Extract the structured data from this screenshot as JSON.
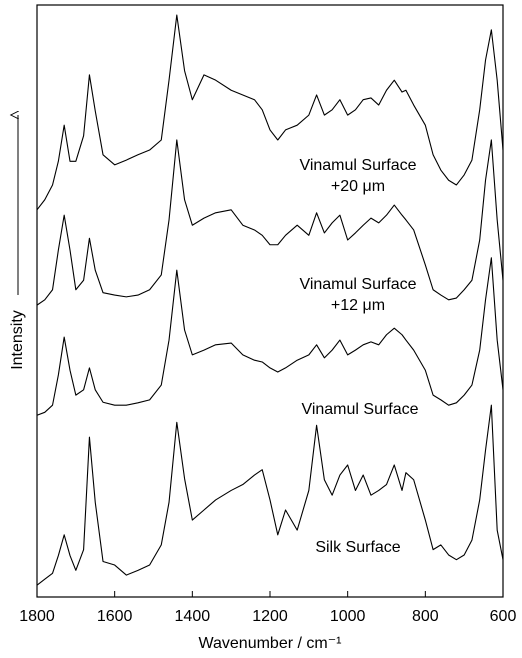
{
  "chart_data": {
    "type": "line",
    "x_label": "Wavenumber / cm⁻¹",
    "y_label": "Intensity",
    "x": [
      1800,
      1780,
      1760,
      1745,
      1730,
      1715,
      1700,
      1680,
      1665,
      1650,
      1630,
      1600,
      1570,
      1540,
      1510,
      1480,
      1460,
      1440,
      1420,
      1400,
      1370,
      1340,
      1300,
      1270,
      1240,
      1220,
      1200,
      1180,
      1160,
      1130,
      1100,
      1080,
      1060,
      1040,
      1020,
      1000,
      980,
      960,
      940,
      920,
      900,
      880,
      860,
      850,
      830,
      800,
      780,
      760,
      740,
      720,
      700,
      680,
      660,
      645,
      630,
      615,
      600
    ],
    "xlim": [
      1800,
      600
    ],
    "xticks": [
      1800,
      1600,
      1400,
      1200,
      1000,
      800,
      600
    ],
    "ylim": [
      0,
      100
    ],
    "series": [
      {
        "labels": [
          "Silk Surface"
        ],
        "color": "#000000",
        "values": [
          2,
          3,
          4,
          7,
          10.5,
          7,
          4.5,
          8,
          27,
          16,
          6,
          5.4,
          3.7,
          4.5,
          5.4,
          8.8,
          16,
          29.5,
          20,
          13,
          14.7,
          16.4,
          18,
          19,
          20.6,
          21.5,
          16.4,
          10.5,
          14.7,
          11.3,
          18,
          29,
          19.8,
          17.2,
          20.6,
          22.3,
          18,
          20.6,
          17.2,
          18,
          19,
          22.3,
          18,
          21,
          19.8,
          13,
          8,
          8.8,
          7.1,
          6.3,
          7.1,
          9.6,
          16.4,
          24.8,
          32.4,
          11.3,
          6.3
        ]
      },
      {
        "labels": [
          "Vinamul Surface"
        ],
        "color": "#000000",
        "values": [
          30.7,
          31.2,
          32.4,
          37.5,
          43.9,
          38.3,
          34.1,
          35,
          38.7,
          35,
          32.9,
          32.4,
          32.4,
          32.8,
          33.3,
          35.8,
          43.4,
          55.2,
          45.1,
          40.9,
          41.7,
          42.6,
          42.9,
          40.9,
          40,
          39.7,
          38.7,
          38,
          38.7,
          40,
          40.9,
          42.6,
          40.4,
          41.7,
          43.4,
          40.9,
          41.7,
          42.6,
          43.1,
          42.6,
          44.3,
          45.4,
          44.3,
          43.4,
          41.7,
          38.3,
          34.1,
          33.3,
          32.4,
          32.8,
          34.1,
          35.8,
          41.7,
          50.2,
          57.3,
          43.4,
          35
        ]
      },
      {
        "labels": [
          "Vinamul Surface",
          "+12 μm"
        ],
        "color": "#000000",
        "values": [
          49.3,
          50.2,
          51.9,
          58.6,
          64.5,
          58.6,
          51.9,
          53.5,
          60.6,
          55.2,
          51.4,
          51,
          50.7,
          51,
          51.9,
          54.4,
          63.7,
          77.2,
          67.1,
          62.8,
          64,
          64.9,
          65.4,
          62.8,
          62,
          61.1,
          59.5,
          59.5,
          61.1,
          62.8,
          61.1,
          64.9,
          61.5,
          63.2,
          64.5,
          60.3,
          61.5,
          62.8,
          64,
          63.2,
          64.5,
          66.2,
          64.5,
          63.7,
          62,
          56.1,
          51.9,
          51,
          50.2,
          50.5,
          51.9,
          53.5,
          60.3,
          70.4,
          77.2,
          63.7,
          53.5
        ]
      },
      {
        "labels": [
          "Vinamul Surface",
          "+20 μm"
        ],
        "color": "#000000",
        "values": [
          65.4,
          67.1,
          69.6,
          73.6,
          79.7,
          73.6,
          73.6,
          77.9,
          88.2,
          82.1,
          74.7,
          73,
          73.8,
          74.7,
          75.5,
          77.2,
          87.3,
          98.3,
          88.9,
          84,
          88.2,
          87.3,
          85.6,
          84.8,
          84,
          82.3,
          78.9,
          77.2,
          78.9,
          79.7,
          81.4,
          84.8,
          81.4,
          82.3,
          84,
          81.4,
          82.3,
          84,
          84.3,
          83.1,
          85.6,
          87.3,
          85.3,
          85.6,
          83.1,
          79.7,
          74.7,
          72.1,
          70.4,
          69.6,
          71.3,
          73.8,
          82.3,
          90.7,
          95.8,
          87.3,
          75.5
        ]
      }
    ]
  }
}
